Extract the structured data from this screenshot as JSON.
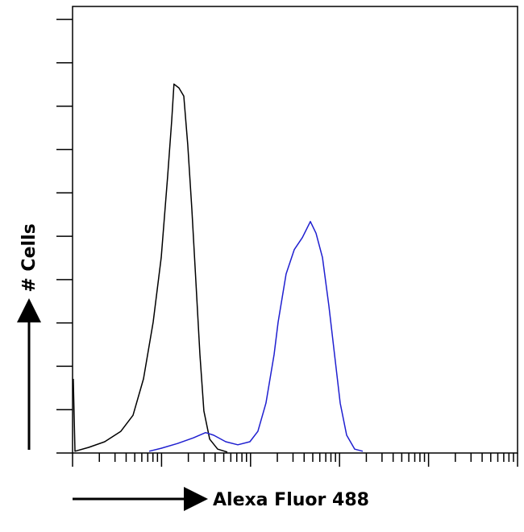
{
  "chart_data": {
    "type": "line",
    "xlabel": "Alexa Fluor 488",
    "ylabel": "# Cells",
    "xscale": "log",
    "xlim": [
      1,
      100000
    ],
    "xticks": [
      1,
      10,
      100,
      1000,
      10000,
      100000
    ],
    "xminorticks": [
      2,
      3,
      4,
      5,
      6,
      7,
      8,
      9,
      20,
      30,
      40,
      50,
      60,
      70,
      80,
      90,
      200,
      300,
      400,
      500,
      600,
      700,
      800,
      900,
      2000,
      3000,
      4000,
      5000,
      6000,
      7000,
      8000,
      9000,
      20000,
      30000,
      40000,
      50000,
      60000,
      70000,
      80000,
      90000
    ],
    "ylim": [
      0,
      103
    ],
    "yticks": [
      0,
      10,
      20,
      30,
      40,
      50,
      60,
      70,
      80,
      90,
      100
    ],
    "series": [
      {
        "color": "#000000",
        "x": [
          1.02,
          1.065,
          1.52,
          2.3,
          3.49,
          4.78,
          6.27,
          8.05,
          9.92,
          11.7,
          13.0,
          13.8,
          15.7,
          17.8,
          19.7,
          21.9,
          24.3,
          27.0,
          29.9,
          34.7,
          42.7,
          54.8
        ],
        "values": [
          17.1,
          0.4,
          1.3,
          2.6,
          5.0,
          8.7,
          17.1,
          30.2,
          45.1,
          63.7,
          76.7,
          85.1,
          84.2,
          82.3,
          71.1,
          56.2,
          39.5,
          22.7,
          9.7,
          3.2,
          0.9,
          0.2
        ]
      },
      {
        "color": "#1f1fd0",
        "x": [
          7.25,
          9.92,
          15.1,
          22.8,
          31.2,
          38.5,
          52.6,
          71.9,
          98.4,
          121,
          149,
          184,
          204,
          251,
          310,
          382,
          470,
          544,
          643,
          759,
          879,
          1016,
          1202,
          1479,
          1823
        ],
        "values": [
          0.4,
          1.1,
          2.2,
          3.5,
          4.7,
          4.1,
          2.6,
          1.9,
          2.6,
          5.0,
          11.5,
          22.7,
          30.2,
          41.3,
          46.9,
          49.7,
          53.4,
          50.7,
          45.1,
          33.9,
          22.7,
          11.5,
          4.1,
          0.9,
          0.4
        ]
      }
    ]
  }
}
